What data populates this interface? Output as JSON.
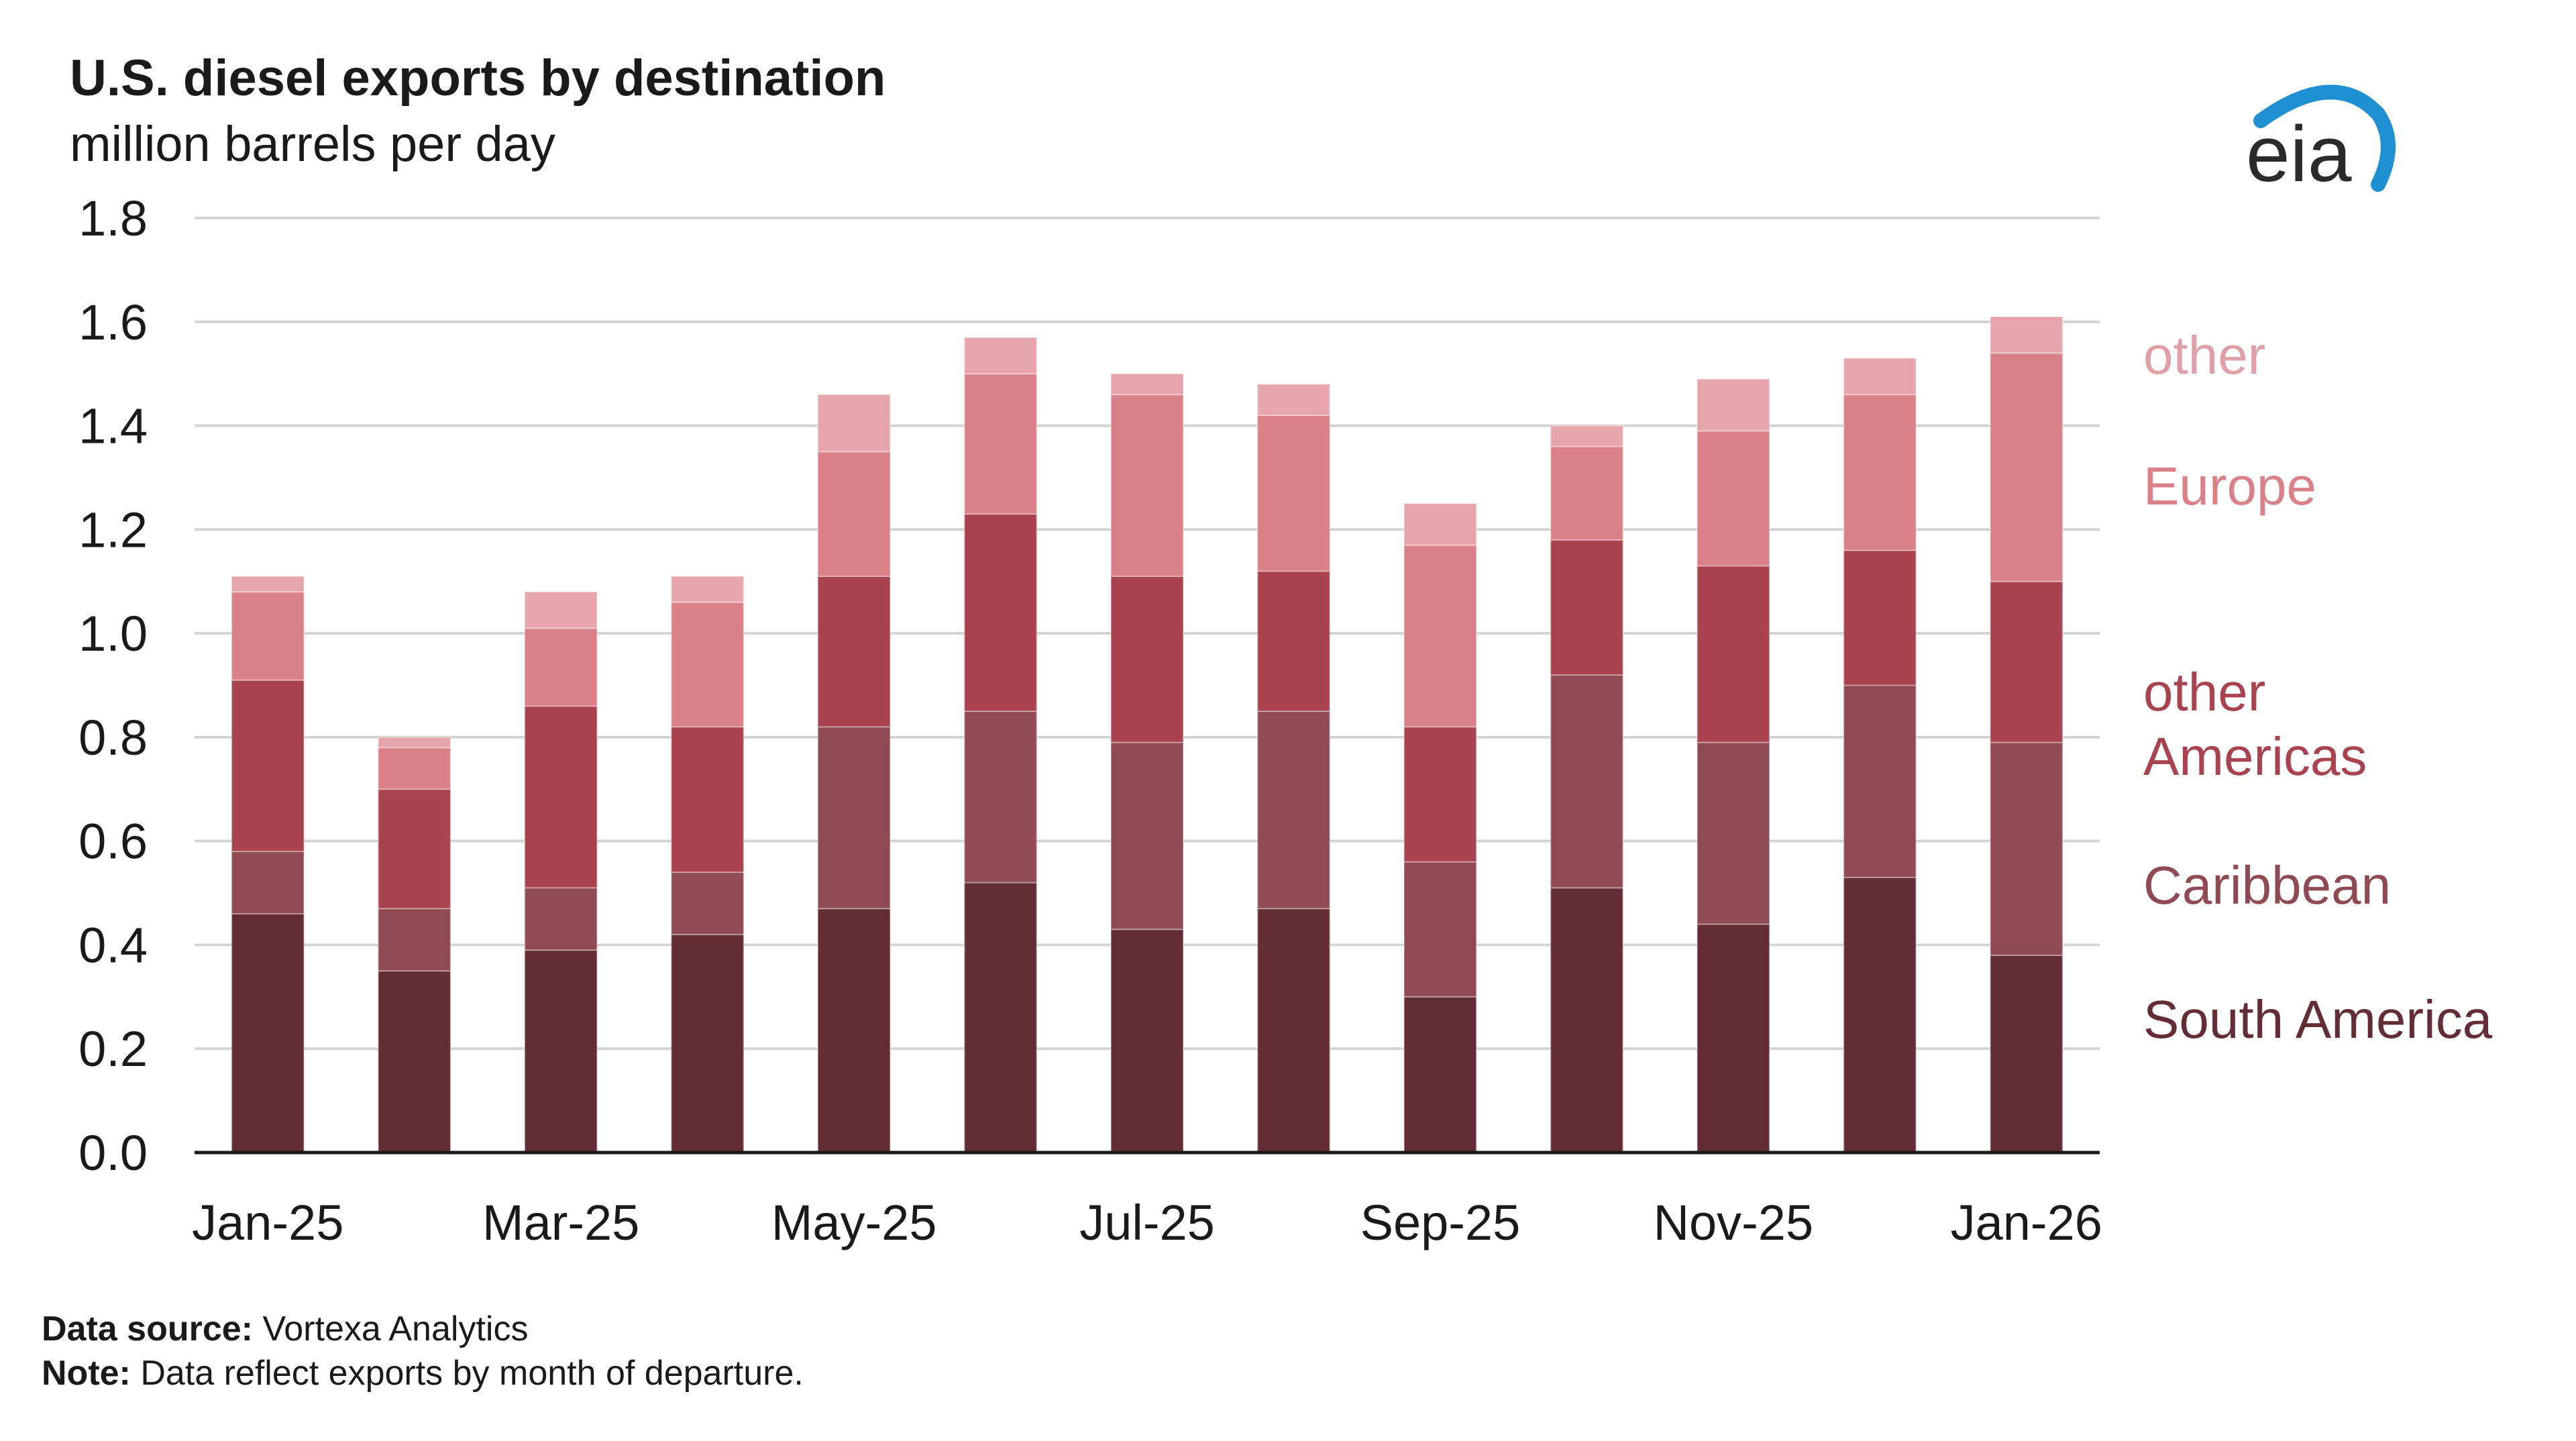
{
  "chart_data": {
    "type": "bar",
    "stacked": true,
    "title": "U.S. diesel exports by destination",
    "subtitle": "million barrels per day",
    "ylim": [
      0,
      1.8
    ],
    "y_ticks": [
      "0.0",
      "0.2",
      "0.4",
      "0.6",
      "0.8",
      "1.0",
      "1.2",
      "1.4",
      "1.6",
      "1.8"
    ],
    "grid": true,
    "legend_position": "right",
    "categories": [
      "Jan-25",
      "Feb-25",
      "Mar-25",
      "Apr-25",
      "May-25",
      "Jun-25",
      "Jul-25",
      "Aug-25",
      "Sep-25",
      "Oct-25",
      "Nov-25",
      "Dec-25",
      "Jan-26"
    ],
    "x_tick_labels": [
      "Jan-25",
      "",
      "Mar-25",
      "",
      "May-25",
      "",
      "Jul-25",
      "",
      "Sep-25",
      "",
      "Nov-25",
      "",
      "Jan-26"
    ],
    "series": [
      {
        "name": "South America",
        "label_lines": [
          "South America"
        ],
        "color": "#642d35",
        "values": [
          0.46,
          0.35,
          0.39,
          0.42,
          0.47,
          0.52,
          0.43,
          0.47,
          0.3,
          0.51,
          0.44,
          0.53,
          0.38
        ]
      },
      {
        "name": "Caribbean",
        "label_lines": [
          "Caribbean"
        ],
        "color": "#8f4a54",
        "values": [
          0.12,
          0.12,
          0.12,
          0.12,
          0.35,
          0.33,
          0.36,
          0.38,
          0.26,
          0.41,
          0.35,
          0.37,
          0.41
        ]
      },
      {
        "name": "other Americas",
        "label_lines": [
          "other",
          "Americas"
        ],
        "color": "#a8434f",
        "values": [
          0.33,
          0.23,
          0.35,
          0.28,
          0.29,
          0.38,
          0.32,
          0.27,
          0.26,
          0.26,
          0.34,
          0.26,
          0.31
        ]
      },
      {
        "name": "Europe",
        "label_lines": [
          "Europe"
        ],
        "color": "#d98088",
        "values": [
          0.17,
          0.08,
          0.15,
          0.24,
          0.24,
          0.27,
          0.35,
          0.3,
          0.35,
          0.18,
          0.26,
          0.3,
          0.44
        ]
      },
      {
        "name": "other",
        "label_lines": [
          "other"
        ],
        "color": "#e6a5ab",
        "values": [
          0.03,
          0.02,
          0.07,
          0.05,
          0.11,
          0.07,
          0.04,
          0.06,
          0.08,
          0.04,
          0.1,
          0.07,
          0.07
        ]
      }
    ],
    "legend_label_colors": {
      "other": "#e0a0a7",
      "Europe": "#d98088",
      "other Americas": "#a8434f",
      "Caribbean": "#8f4a54",
      "South America": "#642d35"
    }
  },
  "logo": {
    "text": "eia",
    "arc_color": "#1e8fd0"
  },
  "footnotes": {
    "source_label": "Data source:",
    "source_text": " Vortexa Analytics",
    "note_label": "Note:",
    "note_text": " Data reflect exports by month of departure."
  }
}
